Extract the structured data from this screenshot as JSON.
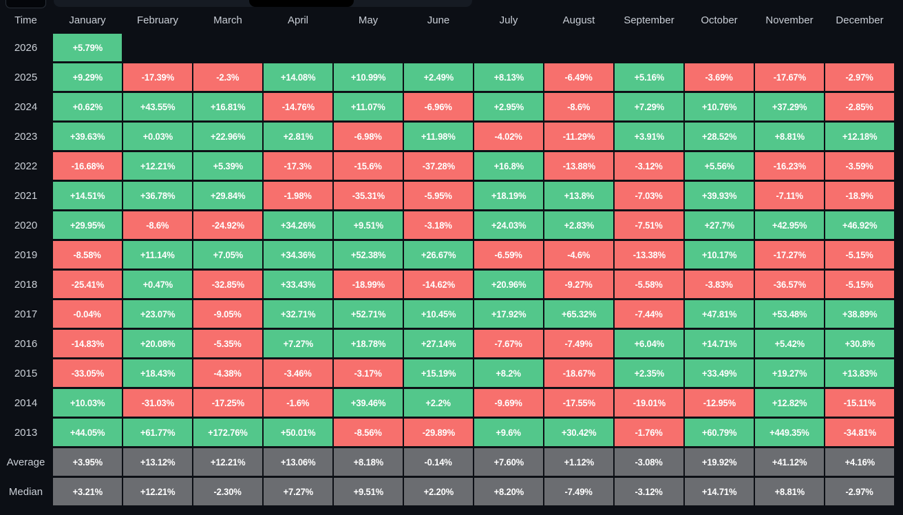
{
  "top_bar": {
    "tab_name": "partial-tab-button",
    "scrollbar_name": "horizontal-scrollbar"
  },
  "colors": {
    "background": "#0c0f15",
    "positive": "#53c78b",
    "negative": "#f7706d",
    "summary": "#6b6d71",
    "header_text": "#c9ced6",
    "cell_text": "#ffffff"
  },
  "table": {
    "corner_label": "Time",
    "columns": [
      "January",
      "February",
      "March",
      "April",
      "May",
      "June",
      "July",
      "August",
      "September",
      "October",
      "November",
      "December"
    ],
    "rows": [
      {
        "label": "2026",
        "cells": [
          "+5.79%",
          "",
          "",
          "",
          "",
          "",
          "",
          "",
          "",
          "",
          "",
          ""
        ]
      },
      {
        "label": "2025",
        "cells": [
          "+9.29%",
          "-17.39%",
          "-2.3%",
          "+14.08%",
          "+10.99%",
          "+2.49%",
          "+8.13%",
          "-6.49%",
          "+5.16%",
          "-3.69%",
          "-17.67%",
          "-2.97%"
        ]
      },
      {
        "label": "2024",
        "cells": [
          "+0.62%",
          "+43.55%",
          "+16.81%",
          "-14.76%",
          "+11.07%",
          "-6.96%",
          "+2.95%",
          "-8.6%",
          "+7.29%",
          "+10.76%",
          "+37.29%",
          "-2.85%"
        ]
      },
      {
        "label": "2023",
        "cells": [
          "+39.63%",
          "+0.03%",
          "+22.96%",
          "+2.81%",
          "-6.98%",
          "+11.98%",
          "-4.02%",
          "-11.29%",
          "+3.91%",
          "+28.52%",
          "+8.81%",
          "+12.18%"
        ]
      },
      {
        "label": "2022",
        "cells": [
          "-16.68%",
          "+12.21%",
          "+5.39%",
          "-17.3%",
          "-15.6%",
          "-37.28%",
          "+16.8%",
          "-13.88%",
          "-3.12%",
          "+5.56%",
          "-16.23%",
          "-3.59%"
        ]
      },
      {
        "label": "2021",
        "cells": [
          "+14.51%",
          "+36.78%",
          "+29.84%",
          "-1.98%",
          "-35.31%",
          "-5.95%",
          "+18.19%",
          "+13.8%",
          "-7.03%",
          "+39.93%",
          "-7.11%",
          "-18.9%"
        ]
      },
      {
        "label": "2020",
        "cells": [
          "+29.95%",
          "-8.6%",
          "-24.92%",
          "+34.26%",
          "+9.51%",
          "-3.18%",
          "+24.03%",
          "+2.83%",
          "-7.51%",
          "+27.7%",
          "+42.95%",
          "+46.92%"
        ]
      },
      {
        "label": "2019",
        "cells": [
          "-8.58%",
          "+11.14%",
          "+7.05%",
          "+34.36%",
          "+52.38%",
          "+26.67%",
          "-6.59%",
          "-4.6%",
          "-13.38%",
          "+10.17%",
          "-17.27%",
          "-5.15%"
        ]
      },
      {
        "label": "2018",
        "cells": [
          "-25.41%",
          "+0.47%",
          "-32.85%",
          "+33.43%",
          "-18.99%",
          "-14.62%",
          "+20.96%",
          "-9.27%",
          "-5.58%",
          "-3.83%",
          "-36.57%",
          "-5.15%"
        ]
      },
      {
        "label": "2017",
        "cells": [
          "-0.04%",
          "+23.07%",
          "-9.05%",
          "+32.71%",
          "+52.71%",
          "+10.45%",
          "+17.92%",
          "+65.32%",
          "-7.44%",
          "+47.81%",
          "+53.48%",
          "+38.89%"
        ]
      },
      {
        "label": "2016",
        "cells": [
          "-14.83%",
          "+20.08%",
          "-5.35%",
          "+7.27%",
          "+18.78%",
          "+27.14%",
          "-7.67%",
          "-7.49%",
          "+6.04%",
          "+14.71%",
          "+5.42%",
          "+30.8%"
        ]
      },
      {
        "label": "2015",
        "cells": [
          "-33.05%",
          "+18.43%",
          "-4.38%",
          "-3.46%",
          "-3.17%",
          "+15.19%",
          "+8.2%",
          "-18.67%",
          "+2.35%",
          "+33.49%",
          "+19.27%",
          "+13.83%"
        ]
      },
      {
        "label": "2014",
        "cells": [
          "+10.03%",
          "-31.03%",
          "-17.25%",
          "-1.6%",
          "+39.46%",
          "+2.2%",
          "-9.69%",
          "-17.55%",
          "-19.01%",
          "-12.95%",
          "+12.82%",
          "-15.11%"
        ]
      },
      {
        "label": "2013",
        "cells": [
          "+44.05%",
          "+61.77%",
          "+172.76%",
          "+50.01%",
          "-8.56%",
          "-29.89%",
          "+9.6%",
          "+30.42%",
          "-1.76%",
          "+60.79%",
          "+449.35%",
          "-34.81%"
        ]
      }
    ],
    "summary_rows": [
      {
        "label": "Average",
        "cells": [
          "+3.95%",
          "+13.12%",
          "+12.21%",
          "+13.06%",
          "+8.18%",
          "-0.14%",
          "+7.60%",
          "+1.12%",
          "-3.08%",
          "+19.92%",
          "+41.12%",
          "+4.16%"
        ]
      },
      {
        "label": "Median",
        "cells": [
          "+3.21%",
          "+12.21%",
          "-2.30%",
          "+7.27%",
          "+9.51%",
          "+2.20%",
          "+8.20%",
          "-7.49%",
          "-3.12%",
          "+14.71%",
          "+8.81%",
          "-2.97%"
        ]
      }
    ]
  },
  "chart_data": {
    "type": "heatmap",
    "columns": [
      "January",
      "February",
      "March",
      "April",
      "May",
      "June",
      "July",
      "August",
      "September",
      "October",
      "November",
      "December"
    ],
    "rows": [
      "2026",
      "2025",
      "2024",
      "2023",
      "2022",
      "2021",
      "2020",
      "2019",
      "2018",
      "2017",
      "2016",
      "2015",
      "2014",
      "2013"
    ],
    "values": [
      [
        5.79,
        null,
        null,
        null,
        null,
        null,
        null,
        null,
        null,
        null,
        null,
        null
      ],
      [
        9.29,
        -17.39,
        -2.3,
        14.08,
        10.99,
        2.49,
        8.13,
        -6.49,
        5.16,
        -3.69,
        -17.67,
        -2.97
      ],
      [
        0.62,
        43.55,
        16.81,
        -14.76,
        11.07,
        -6.96,
        2.95,
        -8.6,
        7.29,
        10.76,
        37.29,
        -2.85
      ],
      [
        39.63,
        0.03,
        22.96,
        2.81,
        -6.98,
        11.98,
        -4.02,
        -11.29,
        3.91,
        28.52,
        8.81,
        12.18
      ],
      [
        -16.68,
        12.21,
        5.39,
        -17.3,
        -15.6,
        -37.28,
        16.8,
        -13.88,
        -3.12,
        5.56,
        -16.23,
        -3.59
      ],
      [
        14.51,
        36.78,
        29.84,
        -1.98,
        -35.31,
        -5.95,
        18.19,
        13.8,
        -7.03,
        39.93,
        -7.11,
        -18.9
      ],
      [
        29.95,
        -8.6,
        -24.92,
        34.26,
        9.51,
        -3.18,
        24.03,
        2.83,
        -7.51,
        27.7,
        42.95,
        46.92
      ],
      [
        -8.58,
        11.14,
        7.05,
        34.36,
        52.38,
        26.67,
        -6.59,
        -4.6,
        -13.38,
        10.17,
        -17.27,
        -5.15
      ],
      [
        -25.41,
        0.47,
        -32.85,
        33.43,
        -18.99,
        -14.62,
        20.96,
        -9.27,
        -5.58,
        -3.83,
        -36.57,
        -5.15
      ],
      [
        -0.04,
        23.07,
        -9.05,
        32.71,
        52.71,
        10.45,
        17.92,
        65.32,
        -7.44,
        47.81,
        53.48,
        38.89
      ],
      [
        -14.83,
        20.08,
        -5.35,
        7.27,
        18.78,
        27.14,
        -7.67,
        -7.49,
        6.04,
        14.71,
        5.42,
        30.8
      ],
      [
        -33.05,
        18.43,
        -4.38,
        -3.46,
        -3.17,
        15.19,
        8.2,
        -18.67,
        2.35,
        33.49,
        19.27,
        13.83
      ],
      [
        10.03,
        -31.03,
        -17.25,
        -1.6,
        39.46,
        2.2,
        -9.69,
        -17.55,
        -19.01,
        -12.95,
        12.82,
        -15.11
      ],
      [
        44.05,
        61.77,
        172.76,
        50.01,
        -8.56,
        -29.89,
        9.6,
        30.42,
        -1.76,
        60.79,
        449.35,
        -34.81
      ]
    ],
    "summary": {
      "Average": [
        3.95,
        13.12,
        12.21,
        13.06,
        8.18,
        -0.14,
        7.6,
        1.12,
        -3.08,
        19.92,
        41.12,
        4.16
      ],
      "Median": [
        3.21,
        12.21,
        -2.3,
        7.27,
        9.51,
        2.2,
        8.2,
        -7.49,
        -3.12,
        14.71,
        8.81,
        -2.97
      ]
    },
    "legend_position": "none",
    "color_positive": "#53c78b",
    "color_negative": "#f7706d",
    "color_summary": "#6b6d71"
  }
}
